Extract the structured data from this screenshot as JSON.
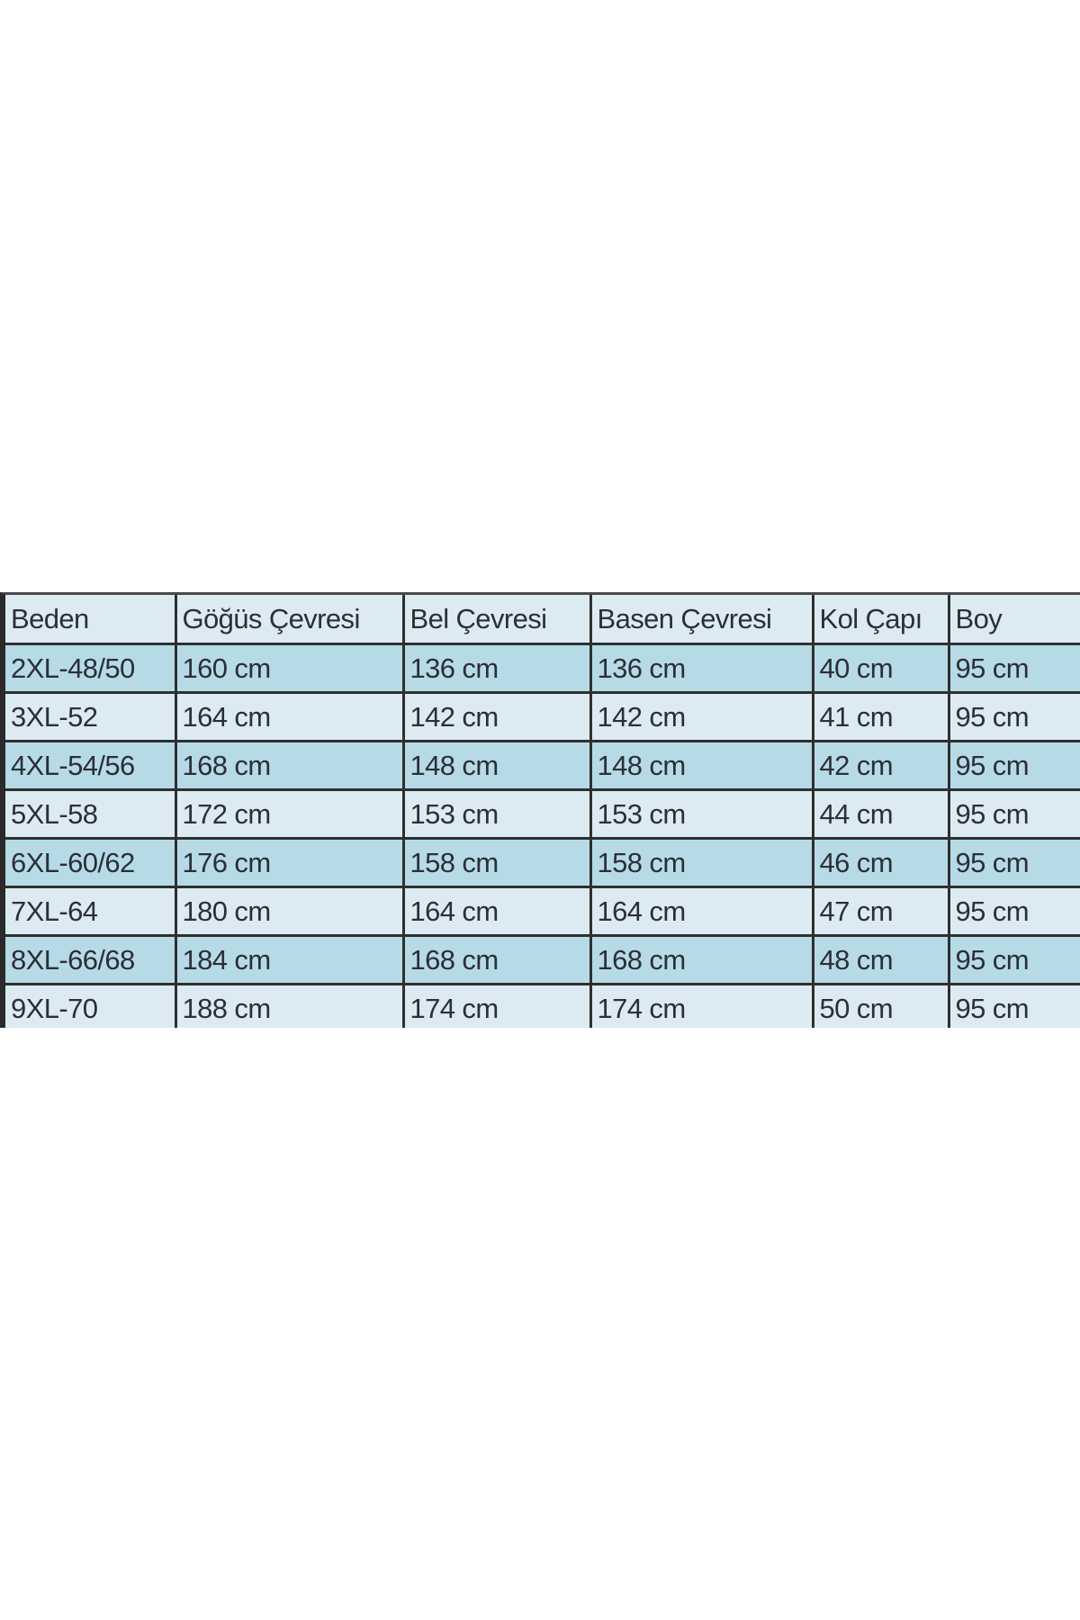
{
  "table": {
    "headers": [
      "Beden",
      "Göğüs Çevresi",
      "Bel Çevresi",
      "Basen Çevresi",
      "Kol Çapı",
      "Boy"
    ],
    "rows": [
      [
        "2XL-48/50",
        "160 cm",
        "136 cm",
        "136 cm",
        "40 cm",
        "95 cm"
      ],
      [
        "3XL-52",
        "164 cm",
        "142 cm",
        "142 cm",
        "41 cm",
        "95 cm"
      ],
      [
        "4XL-54/56",
        "168 cm",
        "148 cm",
        "148 cm",
        "42 cm",
        "95 cm"
      ],
      [
        "5XL-58",
        "172 cm",
        "153 cm",
        "153 cm",
        "44 cm",
        "95 cm"
      ],
      [
        "6XL-60/62",
        "176 cm",
        "158 cm",
        "158 cm",
        "46 cm",
        "95 cm"
      ],
      [
        "7XL-64",
        "180 cm",
        "164 cm",
        "164 cm",
        "47 cm",
        "95 cm"
      ],
      [
        "8XL-66/68",
        "184 cm",
        "168 cm",
        "168 cm",
        "48 cm",
        "95 cm"
      ],
      [
        "9XL-70",
        "188 cm",
        "174 cm",
        "174 cm",
        "50 cm",
        "95 cm"
      ]
    ],
    "colors": {
      "light_row": "#dcebf2",
      "dark_row": "#b7dbe6",
      "text": "#2b2f38",
      "border": "#2f2f2f"
    }
  }
}
